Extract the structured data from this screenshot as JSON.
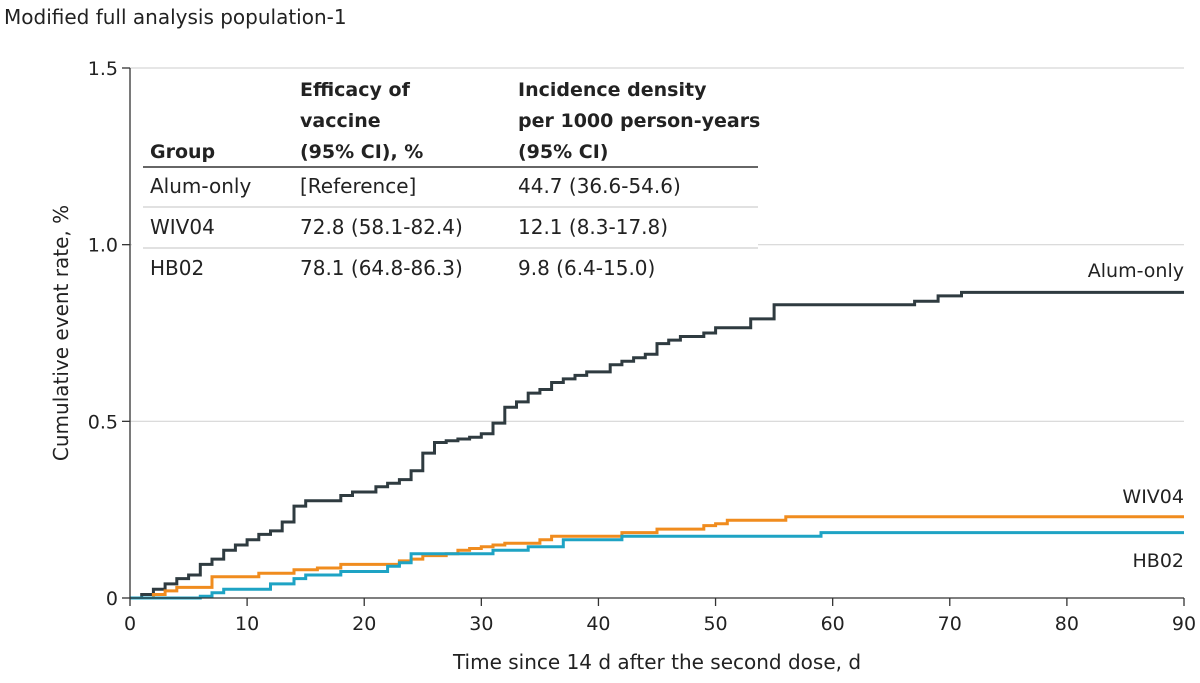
{
  "page_title": "Modified full analysis population-1",
  "chart_data": {
    "type": "line",
    "step": true,
    "xlabel": "Time since 14 d after the second dose, d",
    "ylabel": "Cumulative event rate, %",
    "xlim": [
      0,
      90
    ],
    "ylim": [
      0,
      1.5
    ],
    "x_ticks": [
      0,
      10,
      20,
      30,
      40,
      50,
      60,
      70,
      80,
      90
    ],
    "x_tick_labels": [
      "0",
      "10",
      "20",
      "30",
      "40",
      "50",
      "60",
      "70",
      "80",
      "90"
    ],
    "y_ticks": [
      0,
      0.5,
      1.0,
      1.5
    ],
    "y_tick_labels": [
      "0",
      "0.5",
      "1.0",
      "1.5"
    ],
    "grid": "horizontal",
    "series": [
      {
        "name": "Alum-only",
        "color": "#2f3b40",
        "points": [
          [
            0,
            0
          ],
          [
            1,
            0.01
          ],
          [
            2,
            0.025
          ],
          [
            3,
            0.04
          ],
          [
            4,
            0.055
          ],
          [
            5,
            0.065
          ],
          [
            6,
            0.095
          ],
          [
            7,
            0.11
          ],
          [
            8,
            0.135
          ],
          [
            9,
            0.15
          ],
          [
            10,
            0.165
          ],
          [
            11,
            0.18
          ],
          [
            12,
            0.19
          ],
          [
            13,
            0.215
          ],
          [
            14,
            0.26
          ],
          [
            15,
            0.275
          ],
          [
            17,
            0.275
          ],
          [
            18,
            0.29
          ],
          [
            19,
            0.3
          ],
          [
            20,
            0.3
          ],
          [
            21,
            0.315
          ],
          [
            22,
            0.325
          ],
          [
            23,
            0.335
          ],
          [
            24,
            0.36
          ],
          [
            25,
            0.41
          ],
          [
            26,
            0.44
          ],
          [
            27,
            0.445
          ],
          [
            28,
            0.45
          ],
          [
            29,
            0.455
          ],
          [
            30,
            0.465
          ],
          [
            31,
            0.495
          ],
          [
            32,
            0.54
          ],
          [
            33,
            0.555
          ],
          [
            34,
            0.58
          ],
          [
            35,
            0.59
          ],
          [
            36,
            0.61
          ],
          [
            37,
            0.62
          ],
          [
            38,
            0.63
          ],
          [
            39,
            0.64
          ],
          [
            40,
            0.64
          ],
          [
            41,
            0.66
          ],
          [
            42,
            0.67
          ],
          [
            43,
            0.68
          ],
          [
            44,
            0.69
          ],
          [
            45,
            0.72
          ],
          [
            46,
            0.73
          ],
          [
            47,
            0.74
          ],
          [
            48,
            0.74
          ],
          [
            49,
            0.75
          ],
          [
            50,
            0.765
          ],
          [
            52,
            0.765
          ],
          [
            53,
            0.79
          ],
          [
            54,
            0.79
          ],
          [
            55,
            0.83
          ],
          [
            66,
            0.83
          ],
          [
            67,
            0.84
          ],
          [
            68,
            0.84
          ],
          [
            69,
            0.855
          ],
          [
            70,
            0.855
          ],
          [
            71,
            0.865
          ],
          [
            90,
            0.865
          ]
        ]
      },
      {
        "name": "WIV04",
        "color": "#f08c1e",
        "points": [
          [
            0,
            0
          ],
          [
            2,
            0.01
          ],
          [
            3,
            0.02
          ],
          [
            4,
            0.03
          ],
          [
            6,
            0.03
          ],
          [
            7,
            0.06
          ],
          [
            10,
            0.06
          ],
          [
            11,
            0.07
          ],
          [
            13,
            0.07
          ],
          [
            14,
            0.08
          ],
          [
            16,
            0.085
          ],
          [
            18,
            0.095
          ],
          [
            22,
            0.095
          ],
          [
            23,
            0.105
          ],
          [
            24,
            0.11
          ],
          [
            25,
            0.12
          ],
          [
            27,
            0.125
          ],
          [
            28,
            0.135
          ],
          [
            29,
            0.14
          ],
          [
            30,
            0.145
          ],
          [
            31,
            0.15
          ],
          [
            32,
            0.155
          ],
          [
            35,
            0.165
          ],
          [
            36,
            0.175
          ],
          [
            40,
            0.175
          ],
          [
            41,
            0.175
          ],
          [
            42,
            0.185
          ],
          [
            44,
            0.185
          ],
          [
            45,
            0.195
          ],
          [
            48,
            0.195
          ],
          [
            49,
            0.205
          ],
          [
            50,
            0.21
          ],
          [
            51,
            0.22
          ],
          [
            55,
            0.22
          ],
          [
            56,
            0.23
          ],
          [
            90,
            0.23
          ]
        ]
      },
      {
        "name": "HB02",
        "color": "#1ea3c4",
        "points": [
          [
            0,
            0
          ],
          [
            5,
            0
          ],
          [
            6,
            0.005
          ],
          [
            7,
            0.015
          ],
          [
            8,
            0.025
          ],
          [
            10,
            0.025
          ],
          [
            11,
            0.025
          ],
          [
            12,
            0.04
          ],
          [
            13,
            0.04
          ],
          [
            14,
            0.055
          ],
          [
            15,
            0.065
          ],
          [
            17,
            0.065
          ],
          [
            18,
            0.075
          ],
          [
            21,
            0.075
          ],
          [
            22,
            0.09
          ],
          [
            23,
            0.1
          ],
          [
            24,
            0.125
          ],
          [
            25,
            0.125
          ],
          [
            30,
            0.125
          ],
          [
            31,
            0.135
          ],
          [
            33,
            0.135
          ],
          [
            34,
            0.145
          ],
          [
            36,
            0.145
          ],
          [
            37,
            0.165
          ],
          [
            41,
            0.165
          ],
          [
            42,
            0.175
          ],
          [
            58,
            0.175
          ],
          [
            59,
            0.185
          ],
          [
            90,
            0.185
          ]
        ]
      }
    ],
    "inset_table": {
      "headers": [
        [
          "Group"
        ],
        [
          "Efficacy of",
          "vaccine",
          "(95% CI), %"
        ],
        [
          "Incidence density",
          "per 1000 person-years",
          "(95% CI)"
        ]
      ],
      "rows": [
        [
          "Alum-only",
          "[Reference]",
          "44.7 (36.6-54.6)"
        ],
        [
          "WIV04",
          "72.8 (58.1-82.4)",
          "12.1 (8.3-17.8)"
        ],
        [
          "HB02",
          "78.1 (64.8-86.3)",
          "9.8 (6.4-15.0)"
        ]
      ]
    }
  }
}
